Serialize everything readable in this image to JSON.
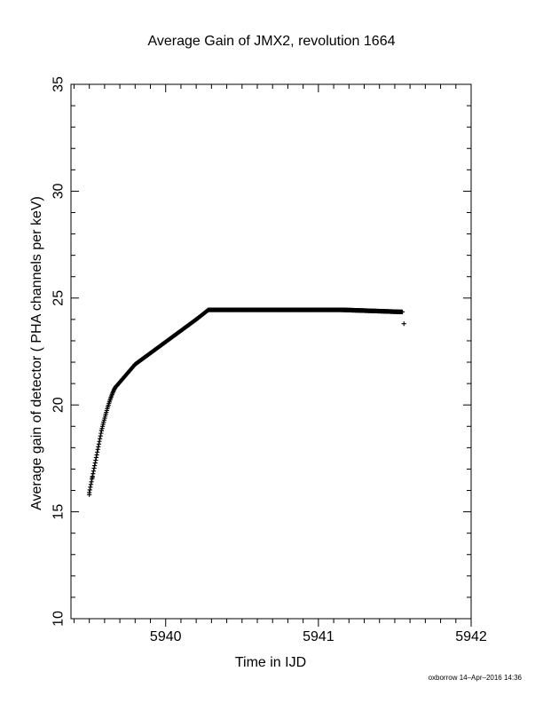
{
  "footer": "oxborrow 14–Apr–2016 14:36",
  "chart_data": {
    "type": "scatter",
    "title": "Average Gain of JMX2, revolution 1664",
    "xlabel": "Time in IJD",
    "ylabel": "Average gain of detector ( PHA channels per keV)",
    "xlim": [
      5939.38,
      5942
    ],
    "ylim": [
      10,
      35
    ],
    "xticks": [
      5940,
      5941,
      5942
    ],
    "yticks": [
      10,
      15,
      20,
      25,
      30,
      35
    ],
    "marker": "plus",
    "grid": false,
    "color": "#000000",
    "segments": [
      {
        "x_start": 5939.5,
        "x_end": 5939.58,
        "y_start": 15.9,
        "y_end": 18.8,
        "curve": 1.0
      },
      {
        "x_start": 5939.58,
        "x_end": 5939.68,
        "y_start": 18.8,
        "y_end": 20.9,
        "curve": 1.4
      },
      {
        "x_start": 5939.68,
        "x_end": 5939.8,
        "y_start": 20.9,
        "y_end": 21.9,
        "curve": 1.0
      },
      {
        "x_start": 5939.8,
        "x_end": 5940.2,
        "y_start": 21.9,
        "y_end": 24.0,
        "curve": 1.0
      },
      {
        "x_start": 5940.2,
        "x_end": 5940.28,
        "y_start": 24.0,
        "y_end": 24.45,
        "curve": 1.0
      },
      {
        "x_start": 5940.28,
        "x_end": 5941.15,
        "y_start": 24.45,
        "y_end": 24.45,
        "curve": 1.0
      },
      {
        "x_start": 5941.15,
        "x_end": 5941.55,
        "y_start": 24.45,
        "y_end": 24.35,
        "curve": 1.0
      }
    ],
    "extra_points": [
      {
        "x": 5939.5,
        "y": 15.8
      },
      {
        "x": 5939.52,
        "y": 16.6
      },
      {
        "x": 5941.56,
        "y": 23.8
      }
    ]
  }
}
